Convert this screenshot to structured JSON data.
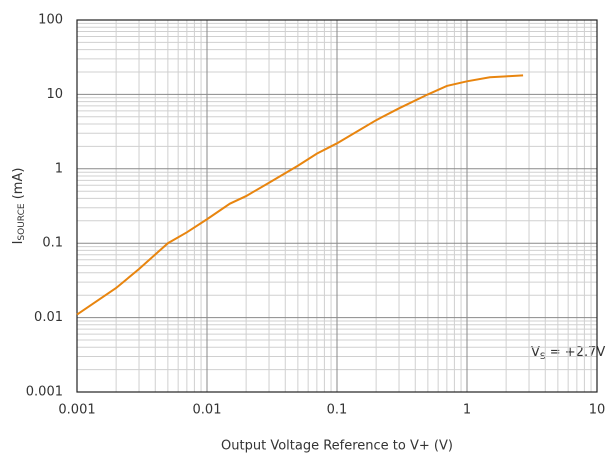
{
  "chart_data": {
    "type": "line",
    "xlog": true,
    "ylog": true,
    "grid": true,
    "minor_grid": true,
    "x_label": "Output Voltage Reference to V+ (V)",
    "y_label": {
      "main": "I",
      "sub": "SOURCE",
      "rest": " (mA)"
    },
    "annotation": {
      "main": "V",
      "sub": "S",
      "rest": " = +2.7V"
    },
    "xlim": [
      0.001,
      10
    ],
    "xticks": [
      0.001,
      0.01,
      0.1,
      1,
      10
    ],
    "ylim": [
      0.001,
      100
    ],
    "yticks": [
      0.001,
      0.01,
      0.1,
      1,
      10,
      100
    ],
    "series": [
      {
        "color": "#e8850f",
        "x": [
          0.001,
          0.002,
          0.003,
          0.005,
          0.007,
          0.01,
          0.015,
          0.02,
          0.03,
          0.05,
          0.07,
          0.1,
          0.2,
          0.3,
          0.5,
          0.7,
          1,
          1.5,
          2,
          2.7
        ],
        "values": [
          0.011,
          0.025,
          0.045,
          0.1,
          0.14,
          0.21,
          0.34,
          0.43,
          0.65,
          1.1,
          1.6,
          2.2,
          4.5,
          6.5,
          10,
          13,
          15,
          17,
          17.5,
          18
        ]
      }
    ]
  }
}
